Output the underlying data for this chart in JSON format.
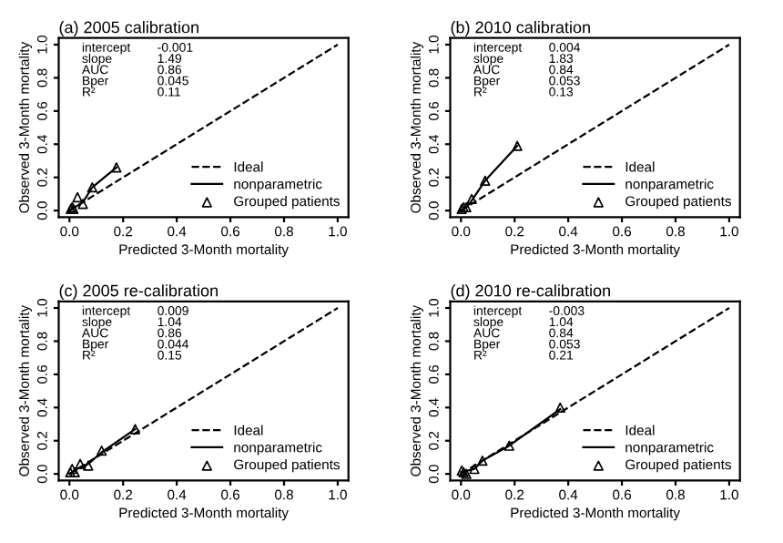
{
  "chart_data": [
    {
      "type": "scatter",
      "title": "(a) 2005 calibration",
      "xlabel": "Predicted 3-Month mortality",
      "ylabel": "Observed 3-Month mortality",
      "xlim": [
        -0.04,
        1.04
      ],
      "ylim": [
        -0.04,
        1.04
      ],
      "xticks": [
        {
          "value": 0,
          "label": "0.0"
        },
        {
          "value": 0.2,
          "label": "0.2"
        },
        {
          "value": 0.4,
          "label": "0.4"
        },
        {
          "value": 0.6,
          "label": "0.6"
        },
        {
          "value": 0.8,
          "label": "0.8"
        },
        {
          "value": 1,
          "label": "1.0"
        }
      ],
      "yticks": [
        {
          "value": 0,
          "label": "0.0"
        },
        {
          "value": 0.2,
          "label": "0.2"
        },
        {
          "value": 0.4,
          "label": "0.4"
        },
        {
          "value": 0.6,
          "label": "0.6"
        },
        {
          "value": 0.8,
          "label": "0.8"
        },
        {
          "value": 1,
          "label": "1.0"
        }
      ],
      "annotations": [
        "intercept -0.001",
        "slope 1.49",
        "AUC 0.86",
        "Bper 0.045",
        "R² 0.11"
      ],
      "legend": "bottom right",
      "grid": false,
      "series": [
        {
          "name": "Ideal",
          "type": "line",
          "line_style": "dashed",
          "marker": "none",
          "color": "#000000",
          "x": [
            0,
            1
          ],
          "values": [
            0,
            1
          ]
        },
        {
          "name": "nonparametric",
          "type": "line",
          "line_style": "solid",
          "marker": "none",
          "color": "#000000",
          "x": [
            0,
            0.01,
            0.03,
            0.05,
            0.085,
            0.175
          ],
          "values": [
            0,
            0.01,
            0.03,
            0.05,
            0.14,
            0.26
          ]
        },
        {
          "name": "Grouped patients",
          "marker": "triangle",
          "color": "#000000",
          "x": [
            0.005,
            0.01,
            0.015,
            0.03,
            0.05,
            0.085,
            0.175
          ],
          "values": [
            0.01,
            0.02,
            0.01,
            0.08,
            0.04,
            0.14,
            0.26
          ]
        }
      ]
    },
    {
      "type": "scatter",
      "title": "(b) 2010 calibration",
      "xlabel": "Predicted 3-Month mortality",
      "ylabel": "Observed 3-Month mortality",
      "xlim": [
        -0.04,
        1.04
      ],
      "ylim": [
        -0.04,
        1.04
      ],
      "xticks": [
        {
          "value": 0,
          "label": "0.0"
        },
        {
          "value": 0.2,
          "label": "0.2"
        },
        {
          "value": 0.4,
          "label": "0.4"
        },
        {
          "value": 0.6,
          "label": "0.6"
        },
        {
          "value": 0.8,
          "label": "0.8"
        },
        {
          "value": 1,
          "label": "1.0"
        }
      ],
      "yticks": [
        {
          "value": 0,
          "label": "0.0"
        },
        {
          "value": 0.2,
          "label": "0.2"
        },
        {
          "value": 0.4,
          "label": "0.4"
        },
        {
          "value": 0.6,
          "label": "0.6"
        },
        {
          "value": 0.8,
          "label": "0.8"
        },
        {
          "value": 1,
          "label": "1.0"
        }
      ],
      "annotations": [
        "intercept 0.004",
        "slope 1.83",
        "AUC 0.84",
        "Bper 0.053",
        "R² 0.13"
      ],
      "legend": "bottom right",
      "grid": false,
      "series": [
        {
          "name": "Ideal",
          "type": "line",
          "line_style": "dashed",
          "marker": "none",
          "color": "#000000",
          "x": [
            0,
            1
          ],
          "values": [
            0,
            1
          ]
        },
        {
          "name": "nonparametric",
          "type": "line",
          "line_style": "solid",
          "marker": "none",
          "color": "#000000",
          "x": [
            0,
            0.02,
            0.04,
            0.09,
            0.21
          ],
          "values": [
            0,
            0.02,
            0.06,
            0.18,
            0.39
          ]
        },
        {
          "name": "Grouped patients",
          "marker": "triangle",
          "color": "#000000",
          "x": [
            0.003,
            0.01,
            0.02,
            0.04,
            0.09,
            0.21
          ],
          "values": [
            0.01,
            0.02,
            0.02,
            0.07,
            0.18,
            0.39
          ]
        }
      ]
    },
    {
      "type": "scatter",
      "title": "(c) 2005 re-calibration",
      "xlabel": "Predicted 3-Month mortality",
      "ylabel": "Observed 3-Month mortality",
      "xlim": [
        -0.04,
        1.04
      ],
      "ylim": [
        -0.04,
        1.04
      ],
      "xticks": [
        {
          "value": 0,
          "label": "0.0"
        },
        {
          "value": 0.2,
          "label": "0.2"
        },
        {
          "value": 0.4,
          "label": "0.4"
        },
        {
          "value": 0.6,
          "label": "0.6"
        },
        {
          "value": 0.8,
          "label": "0.8"
        },
        {
          "value": 1,
          "label": "1.0"
        }
      ],
      "yticks": [
        {
          "value": 0,
          "label": "0.0"
        },
        {
          "value": 0.2,
          "label": "0.2"
        },
        {
          "value": 0.4,
          "label": "0.4"
        },
        {
          "value": 0.6,
          "label": "0.6"
        },
        {
          "value": 0.8,
          "label": "0.8"
        },
        {
          "value": 1,
          "label": "1.0"
        }
      ],
      "annotations": [
        "intercept 0.009",
        "slope 1.04",
        "AUC 0.86",
        "Bper 0.044",
        "R² 0.15"
      ],
      "legend": "bottom right",
      "grid": false,
      "series": [
        {
          "name": "Ideal",
          "type": "line",
          "line_style": "dashed",
          "marker": "none",
          "color": "#000000",
          "x": [
            0,
            1
          ],
          "values": [
            0,
            1
          ]
        },
        {
          "name": "nonparametric",
          "type": "line",
          "line_style": "solid",
          "marker": "none",
          "color": "#000000",
          "x": [
            0,
            0.04,
            0.07,
            0.12,
            0.245
          ],
          "values": [
            0,
            0.04,
            0.06,
            0.13,
            0.27
          ]
        },
        {
          "name": "Grouped patients",
          "marker": "triangle",
          "color": "#000000",
          "x": [
            0.003,
            0.01,
            0.02,
            0.04,
            0.07,
            0.12,
            0.245
          ],
          "values": [
            0.01,
            0.03,
            0.01,
            0.06,
            0.05,
            0.14,
            0.27
          ]
        }
      ]
    },
    {
      "type": "scatter",
      "title": "(d) 2010 re-calibration",
      "xlabel": "Predicted 3-Month mortality",
      "ylabel": "Observed 3-Month mortality",
      "xlim": [
        -0.04,
        1.04
      ],
      "ylim": [
        -0.04,
        1.04
      ],
      "xticks": [
        {
          "value": 0,
          "label": "0.0"
        },
        {
          "value": 0.2,
          "label": "0.2"
        },
        {
          "value": 0.4,
          "label": "0.4"
        },
        {
          "value": 0.6,
          "label": "0.6"
        },
        {
          "value": 0.8,
          "label": "0.8"
        },
        {
          "value": 1,
          "label": "1.0"
        }
      ],
      "yticks": [
        {
          "value": 0,
          "label": "0.0"
        },
        {
          "value": 0.2,
          "label": "0.2"
        },
        {
          "value": 0.4,
          "label": "0.4"
        },
        {
          "value": 0.6,
          "label": "0.6"
        },
        {
          "value": 0.8,
          "label": "0.8"
        },
        {
          "value": 1,
          "label": "1.0"
        }
      ],
      "annotations": [
        "intercept -0.003",
        "slope 1.04",
        "AUC 0.84",
        "Bper 0.053",
        "R² 0.21"
      ],
      "legend": "bottom right",
      "grid": false,
      "series": [
        {
          "name": "Ideal",
          "type": "line",
          "line_style": "dashed",
          "marker": "none",
          "color": "#000000",
          "x": [
            0,
            1
          ],
          "values": [
            0,
            1
          ]
        },
        {
          "name": "nonparametric",
          "type": "line",
          "line_style": "solid",
          "marker": "none",
          "color": "#000000",
          "x": [
            0,
            0.05,
            0.08,
            0.18,
            0.37
          ],
          "values": [
            0.01,
            0.03,
            0.08,
            0.17,
            0.39
          ]
        },
        {
          "name": "Grouped patients",
          "marker": "triangle",
          "color": "#000000",
          "x": [
            0.003,
            0.01,
            0.02,
            0.05,
            0.08,
            0.18,
            0.37
          ],
          "values": [
            0.02,
            0.01,
            0.0,
            0.03,
            0.08,
            0.17,
            0.4
          ]
        }
      ]
    }
  ]
}
